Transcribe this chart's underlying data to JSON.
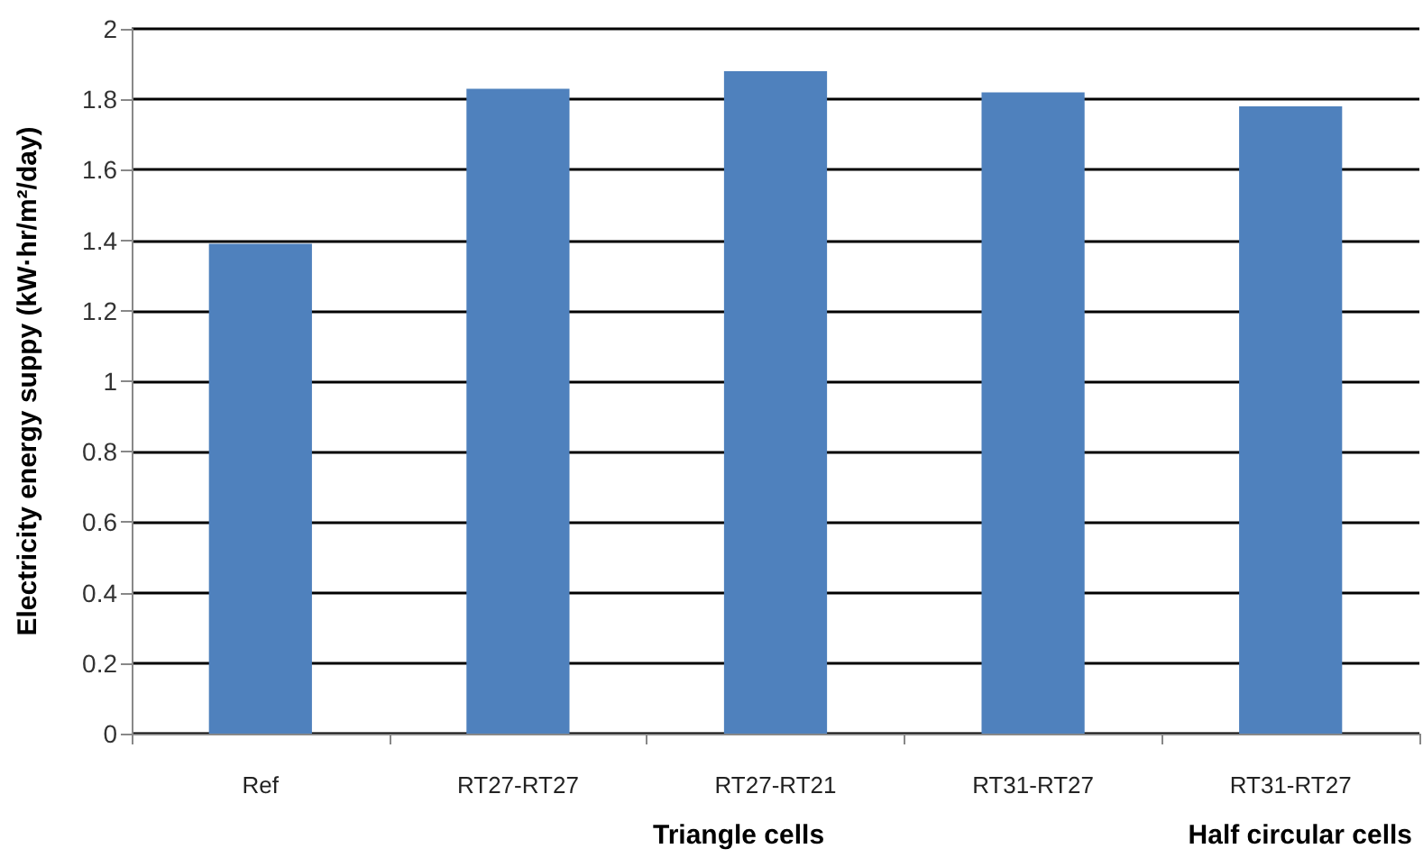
{
  "chart_data": {
    "type": "bar",
    "ylabel": "Electricity energy suppy (kW·hr/m²/day)",
    "categories": [
      "Ref",
      "RT27-RT27",
      "RT27-RT21",
      "RT31-RT27",
      "RT31-RT27"
    ],
    "values": [
      1.39,
      1.83,
      1.88,
      1.82,
      1.78
    ],
    "color": "#4f81bd",
    "ylim": [
      0,
      2
    ],
    "yticks": [
      0,
      0.2,
      0.4,
      0.6,
      0.8,
      1,
      1.2,
      1.4,
      1.6,
      1.8,
      2
    ],
    "grid": "y",
    "annotations": [
      "Triangle cells",
      "Half circular cells"
    ]
  }
}
